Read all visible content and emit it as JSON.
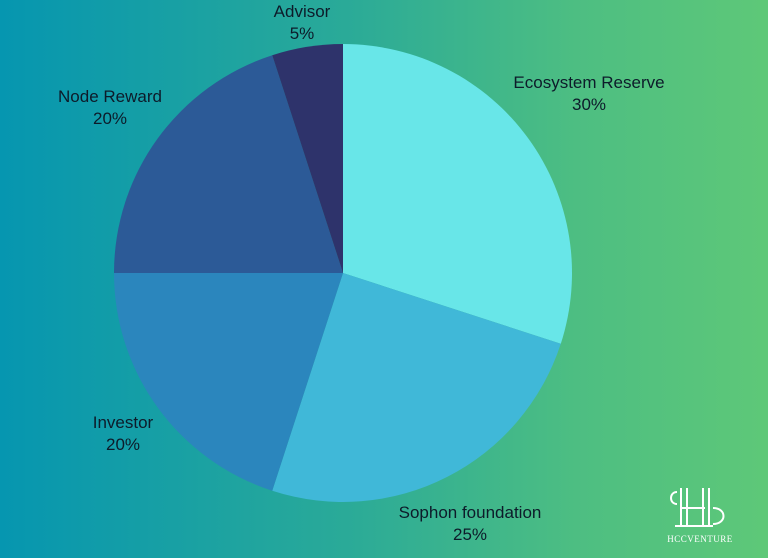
{
  "chart_data": {
    "type": "pie",
    "slices": [
      {
        "label": "Ecosystem Reserve",
        "value": 30,
        "value_label": "30%",
        "color": "#68e6e8"
      },
      {
        "label": "Sophon foundation",
        "value": 25,
        "value_label": "25%",
        "color": "#40b8d8"
      },
      {
        "label": "Investor",
        "value": 20,
        "value_label": "20%",
        "color": "#2b86bd"
      },
      {
        "label": "Node Reward",
        "value": 20,
        "value_label": "20%",
        "color": "#2c5a97"
      },
      {
        "label": "Advisor",
        "value": 5,
        "value_label": "5%",
        "color": "#2e336b"
      }
    ],
    "start_angle_deg": 0,
    "direction": "clockwise"
  },
  "branding": {
    "logo_text": "HCCVENTURE",
    "logo_icon": "hccventure-monogram-icon"
  }
}
